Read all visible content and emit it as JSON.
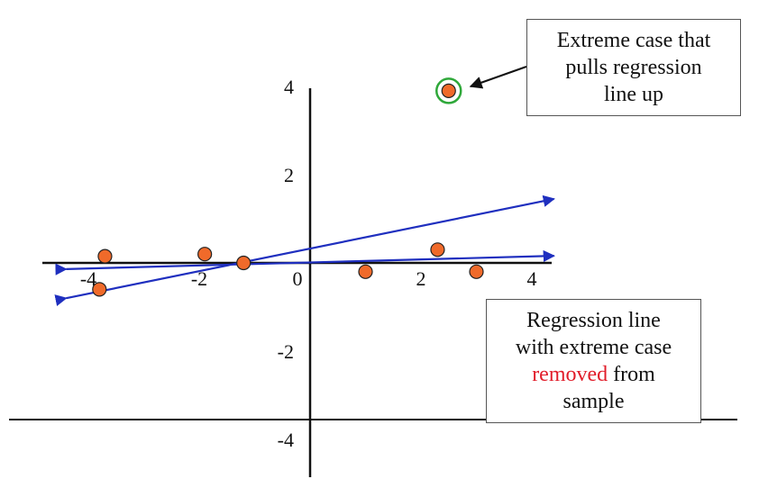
{
  "colors": {
    "regression_line": "#1f2fbf",
    "point_fill": "#f06a2a",
    "point_stroke": "#222222",
    "highlight_ring": "#2fa83a",
    "axis": "#111111",
    "emphasis_text": "#e11d2a"
  },
  "chart_data": {
    "type": "scatter",
    "title": "",
    "xlabel": "",
    "ylabel": "",
    "xlim": [
      -4.4,
      4.4
    ],
    "ylim": [
      -4.8,
      4.2
    ],
    "x_ticks": [
      -4,
      -2,
      0,
      2,
      4
    ],
    "x_tick_labels": [
      "-4",
      "-2",
      "0",
      "2",
      "4"
    ],
    "y_ticks": [
      4,
      2,
      -2,
      -4
    ],
    "y_tick_labels": [
      "4",
      "2",
      "-2",
      "-4"
    ],
    "points": [
      {
        "x": -3.7,
        "y": 0.15
      },
      {
        "x": -1.9,
        "y": 0.2
      },
      {
        "x": -1.2,
        "y": 0.0
      },
      {
        "x": -3.8,
        "y": -0.6
      },
      {
        "x": 1.0,
        "y": -0.2
      },
      {
        "x": 2.3,
        "y": 0.3
      },
      {
        "x": 3.0,
        "y": -0.2
      },
      {
        "x": 2.5,
        "y": 3.9,
        "extreme": true
      }
    ],
    "regression_lines": [
      {
        "label": "with extreme case",
        "x": [
          -4.4,
          4.4
        ],
        "y": [
          -0.8,
          1.45
        ]
      },
      {
        "label": "extreme case removed",
        "x": [
          -4.4,
          4.4
        ],
        "y": [
          -0.14,
          0.16
        ]
      }
    ],
    "grid": false
  },
  "annotations": {
    "extreme_case": {
      "line1": "Extreme case that",
      "line2": "pulls regression",
      "line3": "line up"
    },
    "removed_case": {
      "line1": "Regression line",
      "line2": "with extreme case",
      "line3_red": "removed",
      "line3_rest": " from",
      "line4": "sample"
    }
  }
}
